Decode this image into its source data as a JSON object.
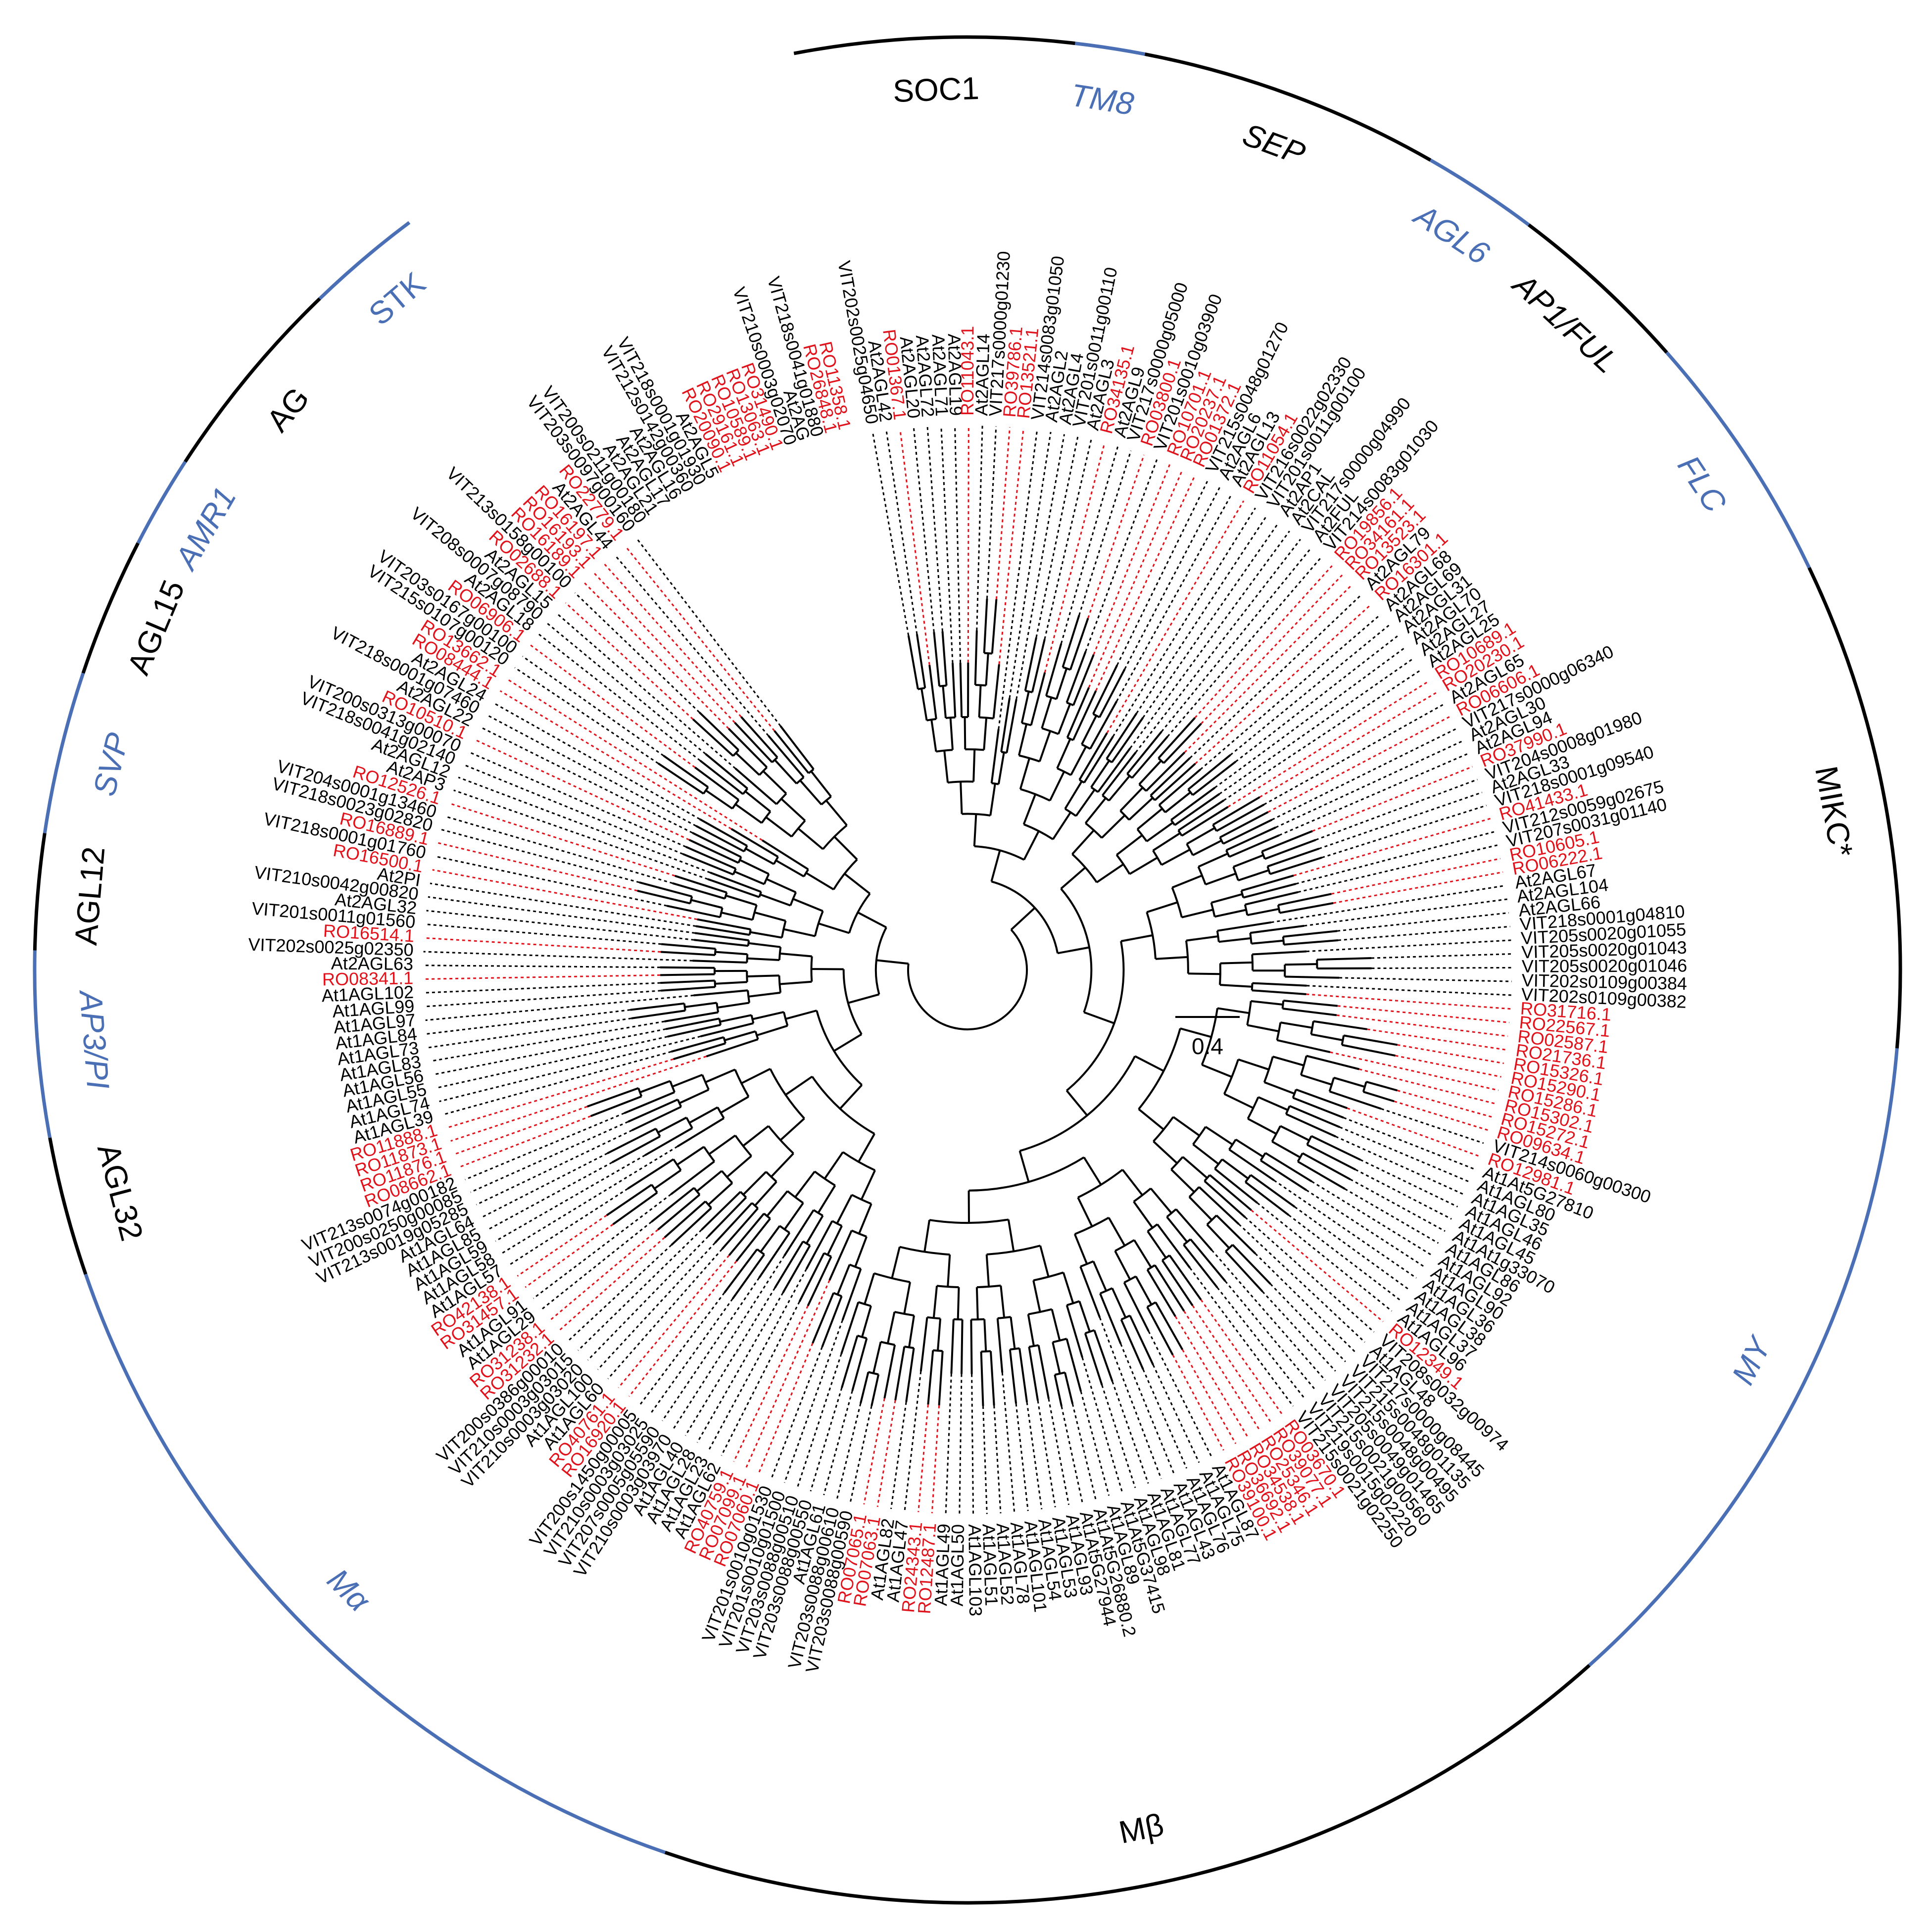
{
  "colors": {
    "red": "#e0121b",
    "black": "#000000",
    "blue": "#4a6fb5",
    "ring_black": "#000000",
    "ring_blue": "#4a6fb5"
  },
  "scale_bar": {
    "label": "0.4",
    "value": 0.4
  },
  "groups": [
    {
      "name": "SOC1",
      "color": "black",
      "italic": false,
      "start": 0,
      "end": 11
    },
    {
      "name": "TM8",
      "color": "blue",
      "italic": true,
      "start": 12,
      "end": 14
    },
    {
      "name": "SEP",
      "color": "black",
      "italic": true,
      "start": 15,
      "end": 27
    },
    {
      "name": "AGL6",
      "color": "blue",
      "italic": true,
      "start": 28,
      "end": 32
    },
    {
      "name": "AP1/FUL",
      "color": "black",
      "italic": true,
      "start": 33,
      "end": 40
    },
    {
      "name": "FLC",
      "color": "blue",
      "italic": true,
      "start": 41,
      "end": 51
    },
    {
      "name": "MIKC*",
      "color": "black",
      "italic": false,
      "start": 52,
      "end": 72
    },
    {
      "name": "MY",
      "color": "blue",
      "italic": true,
      "start": 73,
      "end": 102
    },
    {
      "name": "Mβ",
      "color": "black",
      "italic": false,
      "start": 103,
      "end": 144
    },
    {
      "name": "Mα",
      "color": "blue",
      "italic": true,
      "start": 145,
      "end": 180
    },
    {
      "name": "AGL32",
      "color": "black",
      "italic": false,
      "start": 181,
      "end": 186
    },
    {
      "name": "AP3/PI",
      "color": "blue",
      "italic": true,
      "start": 187,
      "end": 194
    },
    {
      "name": "AGL12",
      "color": "black",
      "italic": false,
      "start": 195,
      "end": 199
    },
    {
      "name": "SVP",
      "color": "blue",
      "italic": true,
      "start": 200,
      "end": 206
    },
    {
      "name": "AGL15",
      "color": "black",
      "italic": false,
      "start": 207,
      "end": 212
    },
    {
      "name": "AMR1",
      "color": "blue",
      "italic": true,
      "start": 213,
      "end": 216
    },
    {
      "name": "AG",
      "color": "black",
      "italic": false,
      "start": 217,
      "end": 225
    },
    {
      "name": "STK",
      "color": "blue",
      "italic": false,
      "start": 226,
      "end": 230
    }
  ],
  "leaves": [
    {
      "label": "VIT202s0025g04650",
      "color": "black"
    },
    {
      "label": "At2AGL42",
      "color": "black"
    },
    {
      "label": "RO01367.1",
      "color": "red"
    },
    {
      "label": "At2AGL20",
      "color": "black"
    },
    {
      "label": "At2AGL72",
      "color": "black"
    },
    {
      "label": "At2AGL71",
      "color": "black"
    },
    {
      "label": "At2AGL19",
      "color": "black"
    },
    {
      "label": "RO11043.1",
      "color": "red"
    },
    {
      "label": "At2AGL14",
      "color": "black"
    },
    {
      "label": "VIT217s0000g01230",
      "color": "black"
    },
    {
      "label": "RO39786.1",
      "color": "red"
    },
    {
      "label": "RO13521.1",
      "color": "red"
    },
    {
      "label": "VIT214s0083g01050",
      "color": "black"
    },
    {
      "label": "At2AGL2",
      "color": "black"
    },
    {
      "label": "At2AGL4",
      "color": "black"
    },
    {
      "label": "VIT201s0011g00110",
      "color": "black"
    },
    {
      "label": "At2AGL3",
      "color": "black"
    },
    {
      "label": "RO34135.1",
      "color": "red"
    },
    {
      "label": "At2AGL9",
      "color": "black"
    },
    {
      "label": "VIT217s0000g05000",
      "color": "black"
    },
    {
      "label": "RO03800.1",
      "color": "red"
    },
    {
      "label": "VIT201s0010g03900",
      "color": "black"
    },
    {
      "label": "RO10701.1",
      "color": "red"
    },
    {
      "label": "RO20237.1",
      "color": "red"
    },
    {
      "label": "RO01372.1",
      "color": "red"
    },
    {
      "label": "VIT215s0048g01270",
      "color": "black"
    },
    {
      "label": "At2AGL6",
      "color": "black"
    },
    {
      "label": "At2AGL13",
      "color": "black"
    },
    {
      "label": "RO11054.1",
      "color": "red"
    },
    {
      "label": "VIT216s0022g02330",
      "color": "black"
    },
    {
      "label": "VIT201s0011g00100",
      "color": "black"
    },
    {
      "label": "At2AP1",
      "color": "black"
    },
    {
      "label": "At2CAL",
      "color": "black"
    },
    {
      "label": "VIT217s0000g04990",
      "color": "black"
    },
    {
      "label": "At2FUL",
      "color": "black"
    },
    {
      "label": "VIT214s0083g01030",
      "color": "black"
    },
    {
      "label": "RO19856.1",
      "color": "red"
    },
    {
      "label": "RO34161.1",
      "color": "red"
    },
    {
      "label": "RO13523.1",
      "color": "red"
    },
    {
      "label": "At2AGL79",
      "color": "black"
    },
    {
      "label": "RO16301.1",
      "color": "red"
    },
    {
      "label": "At2AGL68",
      "color": "black"
    },
    {
      "label": "At2AGL69",
      "color": "black"
    },
    {
      "label": "At2AGL31",
      "color": "black"
    },
    {
      "label": "At2AGL70",
      "color": "black"
    },
    {
      "label": "At2AGL27",
      "color": "black"
    },
    {
      "label": "At2AGL25",
      "color": "black"
    },
    {
      "label": "RO10689.1",
      "color": "red"
    },
    {
      "label": "RO20230.1",
      "color": "red"
    },
    {
      "label": "At2AGL65",
      "color": "black"
    },
    {
      "label": "RO06606.1",
      "color": "red"
    },
    {
      "label": "VIT217s0000g06340",
      "color": "black"
    },
    {
      "label": "At2AGL30",
      "color": "black"
    },
    {
      "label": "At2AGL94",
      "color": "black"
    },
    {
      "label": "RO37990.1",
      "color": "red"
    },
    {
      "label": "VIT204s0008g01980",
      "color": "black"
    },
    {
      "label": "At2AGL33",
      "color": "black"
    },
    {
      "label": "VIT218s0001g09540",
      "color": "black"
    },
    {
      "label": "RO41433.1",
      "color": "red"
    },
    {
      "label": "VIT212s0059g02675",
      "color": "black"
    },
    {
      "label": "VIT207s0031g01140",
      "color": "black"
    },
    {
      "label": "RO10605.1",
      "color": "red"
    },
    {
      "label": "RO06222.1",
      "color": "red"
    },
    {
      "label": "At2AGL67",
      "color": "black"
    },
    {
      "label": "At2AGL104",
      "color": "black"
    },
    {
      "label": "At2AGL66",
      "color": "black"
    },
    {
      "label": "VIT218s0001g04810",
      "color": "black"
    },
    {
      "label": "VIT205s0020g01055",
      "color": "black"
    },
    {
      "label": "VIT205s0020g01043",
      "color": "black"
    },
    {
      "label": "VIT205s0020g01046",
      "color": "black"
    },
    {
      "label": "VIT202s0109g00384",
      "color": "black"
    },
    {
      "label": "VIT202s0109g00382",
      "color": "black"
    },
    {
      "label": "RO31716.1",
      "color": "red"
    },
    {
      "label": "RO22567.1",
      "color": "red"
    },
    {
      "label": "RO02587.1",
      "color": "red"
    },
    {
      "label": "RO21736.1",
      "color": "red"
    },
    {
      "label": "RO15326.1",
      "color": "red"
    },
    {
      "label": "RO15290.1",
      "color": "red"
    },
    {
      "label": "RO15286.1",
      "color": "red"
    },
    {
      "label": "RO15302.1",
      "color": "red"
    },
    {
      "label": "RO15272.1",
      "color": "red"
    },
    {
      "label": "RO09634.1",
      "color": "red"
    },
    {
      "label": "VIT214s0060g00300",
      "color": "black"
    },
    {
      "label": "RO12981.1",
      "color": "red"
    },
    {
      "label": "At1At5G27810",
      "color": "black"
    },
    {
      "label": "At1AGL80",
      "color": "black"
    },
    {
      "label": "At1AGL35",
      "color": "black"
    },
    {
      "label": "At1AGL46",
      "color": "black"
    },
    {
      "label": "At1AGL45",
      "color": "black"
    },
    {
      "label": "At1At1g33070",
      "color": "black"
    },
    {
      "label": "At1AGL86",
      "color": "black"
    },
    {
      "label": "At1AGL92",
      "color": "black"
    },
    {
      "label": "At1AGL90",
      "color": "black"
    },
    {
      "label": "At1AGL36",
      "color": "black"
    },
    {
      "label": "At1AGL38",
      "color": "black"
    },
    {
      "label": "At1AGL37",
      "color": "black"
    },
    {
      "label": "At1AGL96",
      "color": "black"
    },
    {
      "label": "RO12349.1",
      "color": "red"
    },
    {
      "label": "VIT208s0032g00974",
      "color": "black"
    },
    {
      "label": "At1AGL48",
      "color": "black"
    },
    {
      "label": "VIT217s0000g08445",
      "color": "black"
    },
    {
      "label": "VIT215s0048g01135",
      "color": "black"
    },
    {
      "label": "VIT215s0048g00495",
      "color": "black"
    },
    {
      "label": "VIT205s0049g01465",
      "color": "black"
    },
    {
      "label": "VIT215s0021g00560",
      "color": "black"
    },
    {
      "label": "VIT219s0015g02220",
      "color": "black"
    },
    {
      "label": "VIT215s0021g02250",
      "color": "black"
    },
    {
      "label": "RO03670.1",
      "color": "red"
    },
    {
      "label": "RO39077.1",
      "color": "red"
    },
    {
      "label": "RO25346.1",
      "color": "red"
    },
    {
      "label": "RO34538.1",
      "color": "red"
    },
    {
      "label": "RO36692.1",
      "color": "red"
    },
    {
      "label": "RO39100.1",
      "color": "red"
    },
    {
      "label": "At1AGL87",
      "color": "black"
    },
    {
      "label": "At1AGL75",
      "color": "black"
    },
    {
      "label": "At1AGL76",
      "color": "black"
    },
    {
      "label": "At1AGL43",
      "color": "black"
    },
    {
      "label": "At1AGL77",
      "color": "black"
    },
    {
      "label": "At1AGL81",
      "color": "black"
    },
    {
      "label": "At1AGL98",
      "color": "black"
    },
    {
      "label": "At1At5G37415",
      "color": "black"
    },
    {
      "label": "At1AGL89",
      "color": "black"
    },
    {
      "label": "At1At5G26880.2",
      "color": "black"
    },
    {
      "label": "At1At5G27944",
      "color": "black"
    },
    {
      "label": "At1AGL93",
      "color": "black"
    },
    {
      "label": "At1AGL53",
      "color": "black"
    },
    {
      "label": "At1AGL54",
      "color": "black"
    },
    {
      "label": "At1AGL101",
      "color": "black"
    },
    {
      "label": "At1AGL78",
      "color": "black"
    },
    {
      "label": "At1AGL52",
      "color": "black"
    },
    {
      "label": "At1AGL51",
      "color": "black"
    },
    {
      "label": "At1AGL103",
      "color": "black"
    },
    {
      "label": "At1AGL50",
      "color": "black"
    },
    {
      "label": "At1AGL49",
      "color": "black"
    },
    {
      "label": "RO12487.1",
      "color": "red"
    },
    {
      "label": "RO24343.1",
      "color": "red"
    },
    {
      "label": "At1AGL47",
      "color": "black"
    },
    {
      "label": "At1AGL82",
      "color": "black"
    },
    {
      "label": "RO07063.1",
      "color": "red"
    },
    {
      "label": "RO07065.1",
      "color": "red"
    },
    {
      "label": "VIT203s0088g00590",
      "color": "black"
    },
    {
      "label": "VIT203s0088g00610",
      "color": "black"
    },
    {
      "label": "At1AGL61",
      "color": "black"
    },
    {
      "label": "VIT203s0088g00550",
      "color": "black"
    },
    {
      "label": "VIT203s0088g00510",
      "color": "black"
    },
    {
      "label": "VIT201s0010g01500",
      "color": "black"
    },
    {
      "label": "VIT201s0010g01530",
      "color": "black"
    },
    {
      "label": "RO07060.1",
      "color": "red"
    },
    {
      "label": "RO07099.1",
      "color": "red"
    },
    {
      "label": "RO40759.1",
      "color": "red"
    },
    {
      "label": "At1AGL62",
      "color": "black"
    },
    {
      "label": "At1AGL23",
      "color": "black"
    },
    {
      "label": "At1AGL28",
      "color": "black"
    },
    {
      "label": "At1AGL40",
      "color": "black"
    },
    {
      "label": "VIT210s0003g03970",
      "color": "black"
    },
    {
      "label": "VIT207s0005g05590",
      "color": "black"
    },
    {
      "label": "VIT210s0003g03025",
      "color": "black"
    },
    {
      "label": "VIT200s1450g00005",
      "color": "black"
    },
    {
      "label": "RO16920.1",
      "color": "red"
    },
    {
      "label": "RO40761.1",
      "color": "red"
    },
    {
      "label": "At1AGL60",
      "color": "black"
    },
    {
      "label": "At1AGL100",
      "color": "black"
    },
    {
      "label": "VIT210s0003g03020",
      "color": "black"
    },
    {
      "label": "VIT210s0003g03015",
      "color": "black"
    },
    {
      "label": "VIT200s0386g00010",
      "color": "black"
    },
    {
      "label": "RO31232.1",
      "color": "red"
    },
    {
      "label": "RO31238.1",
      "color": "red"
    },
    {
      "label": "At1AGL29",
      "color": "black"
    },
    {
      "label": "At1AGL91",
      "color": "black"
    },
    {
      "label": "RO31457.1",
      "color": "red"
    },
    {
      "label": "RO42138.1",
      "color": "red"
    },
    {
      "label": "At1AGL57",
      "color": "black"
    },
    {
      "label": "At1AGL58",
      "color": "black"
    },
    {
      "label": "At1AGL59",
      "color": "black"
    },
    {
      "label": "At1AGL85",
      "color": "black"
    },
    {
      "label": "At1AGL64",
      "color": "black"
    },
    {
      "label": "VIT213s0019g05285",
      "color": "black"
    },
    {
      "label": "VIT200s0250g00085",
      "color": "black"
    },
    {
      "label": "VIT213s0074g00182",
      "color": "black"
    },
    {
      "label": "RO08662.1",
      "color": "red"
    },
    {
      "label": "RO11876.1",
      "color": "red"
    },
    {
      "label": "RO11873.1",
      "color": "red"
    },
    {
      "label": "RO11888.1",
      "color": "red"
    },
    {
      "label": "At1AGL39",
      "color": "black"
    },
    {
      "label": "At1AGL74",
      "color": "black"
    },
    {
      "label": "At1AGL55",
      "color": "black"
    },
    {
      "label": "At1AGL56",
      "color": "black"
    },
    {
      "label": "At1AGL83",
      "color": "black"
    },
    {
      "label": "At1AGL73",
      "color": "black"
    },
    {
      "label": "At1AGL84",
      "color": "black"
    },
    {
      "label": "At1AGL97",
      "color": "black"
    },
    {
      "label": "At1AGL99",
      "color": "black"
    },
    {
      "label": "At1AGL102",
      "color": "black"
    },
    {
      "label": "RO08341.1",
      "color": "red"
    },
    {
      "label": "At2AGL63",
      "color": "black"
    },
    {
      "label": "VIT202s0025g02350",
      "color": "black"
    },
    {
      "label": "RO16514.1",
      "color": "red"
    },
    {
      "label": "VIT201s0011g01560",
      "color": "black"
    },
    {
      "label": "At2AGL32",
      "color": "black"
    },
    {
      "label": "VIT210s0042g00820",
      "color": "black"
    },
    {
      "label": "At2PI",
      "color": "black"
    },
    {
      "label": "RO16500.1",
      "color": "red"
    },
    {
      "label": "VIT218s0001g01760",
      "color": "black"
    },
    {
      "label": "RO16889.1",
      "color": "red"
    },
    {
      "label": "VIT218s0023g02820",
      "color": "black"
    },
    {
      "label": "VIT204s0001g13460",
      "color": "black"
    },
    {
      "label": "RO12526.1",
      "color": "red"
    },
    {
      "label": "At2AP3",
      "color": "black"
    },
    {
      "label": "At2AGL12",
      "color": "black"
    },
    {
      "label": "VIT218s0041g02140",
      "color": "black"
    },
    {
      "label": "VIT200s0313g00070",
      "color": "black"
    },
    {
      "label": "RO10510.1",
      "color": "red"
    },
    {
      "label": "At2AGL22",
      "color": "black"
    },
    {
      "label": "VIT218s0001g07460",
      "color": "black"
    },
    {
      "label": "At2AGL24",
      "color": "black"
    },
    {
      "label": "RO08444.1",
      "color": "red"
    },
    {
      "label": "RO13662.1",
      "color": "red"
    },
    {
      "label": "VIT215s0107g00120",
      "color": "black"
    },
    {
      "label": "VIT203s0167g00100",
      "color": "black"
    },
    {
      "label": "RO06906.1",
      "color": "red"
    },
    {
      "label": "At2AGL18",
      "color": "black"
    },
    {
      "label": "VIT208s0007g08790",
      "color": "black"
    },
    {
      "label": "At2AGL15",
      "color": "black"
    },
    {
      "label": "RO02688.1",
      "color": "red"
    },
    {
      "label": "VIT213s0158g00100",
      "color": "black"
    },
    {
      "label": "RO16189.1",
      "color": "red"
    },
    {
      "label": "RO16193.1",
      "color": "red"
    },
    {
      "label": "RO16197.1",
      "color": "red"
    },
    {
      "label": "At2AGL44",
      "color": "black"
    },
    {
      "label": "RO22779.1",
      "color": "red"
    },
    {
      "label": "VIT203s0097g00160",
      "color": "black"
    },
    {
      "label": "VIT200s0211g00180",
      "color": "black"
    },
    {
      "label": "At2AGL21",
      "color": "black"
    },
    {
      "label": "At2AGL17",
      "color": "black"
    },
    {
      "label": "At2AGL16",
      "color": "black"
    },
    {
      "label": "VIT212s0142g00360",
      "color": "black"
    },
    {
      "label": "VIT218s0001g01930",
      "color": "black"
    },
    {
      "label": "At2AGL5",
      "color": "black"
    },
    {
      "label": "RO20090.1",
      "color": "red"
    },
    {
      "label": "RO29161.1",
      "color": "red"
    },
    {
      "label": "RO10589.1",
      "color": "red"
    },
    {
      "label": "RO13063.1",
      "color": "red"
    },
    {
      "label": "RO31490.1",
      "color": "red"
    },
    {
      "label": "VIT210s0003g02070",
      "color": "black"
    },
    {
      "label": "At2AG",
      "color": "black"
    },
    {
      "label": "VIT218s0041g01880",
      "color": "black"
    },
    {
      "label": "RO26848.1",
      "color": "red"
    },
    {
      "label": "RO11358.1",
      "color": "red"
    }
  ]
}
